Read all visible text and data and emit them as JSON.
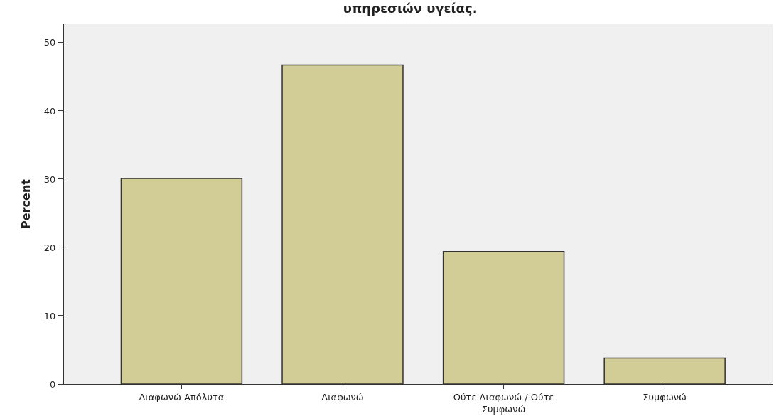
{
  "chart_data": {
    "type": "bar",
    "title": "υπηρεσιών υγείας.",
    "ylabel": "Percent",
    "categories": [
      "Διαφωνώ Απόλυτα",
      "Διαφωνώ",
      "Ούτε Διαφωνώ / Ούτε Συμφωνώ",
      "Συμφωνώ"
    ],
    "values": [
      30.1,
      46.7,
      19.4,
      3.8
    ],
    "color": "#d2cd96",
    "ylim": [
      0,
      52.7
    ],
    "yticks": [
      0,
      10,
      20,
      30,
      40,
      50
    ],
    "grid": false,
    "legend": false
  }
}
